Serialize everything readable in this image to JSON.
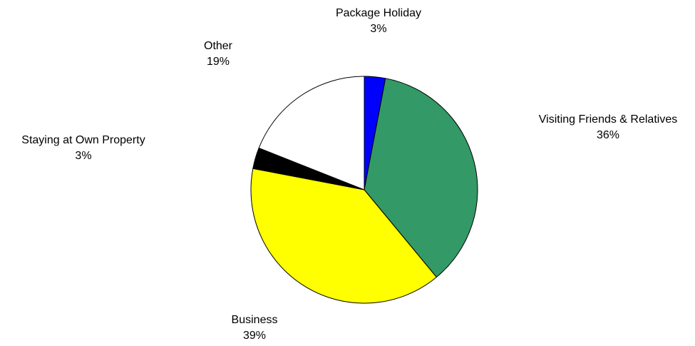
{
  "chart_data": {
    "type": "pie",
    "start_angle_deg": 0,
    "direction": "clockwise",
    "slices": [
      {
        "name": "Package Holiday",
        "value": 3,
        "label": "3%",
        "color": "#0000FF"
      },
      {
        "name": "Visiting Friends & Relatives",
        "value": 36,
        "label": "36%",
        "color": "#339966"
      },
      {
        "name": "Business",
        "value": 39,
        "label": "39%",
        "color": "#FFFF00"
      },
      {
        "name": "Staying at Own Property",
        "value": 3,
        "label": "3%",
        "color": "#000000"
      },
      {
        "name": "Other",
        "value": 19,
        "label": "19%",
        "color": "#FFFFFF"
      }
    ]
  }
}
